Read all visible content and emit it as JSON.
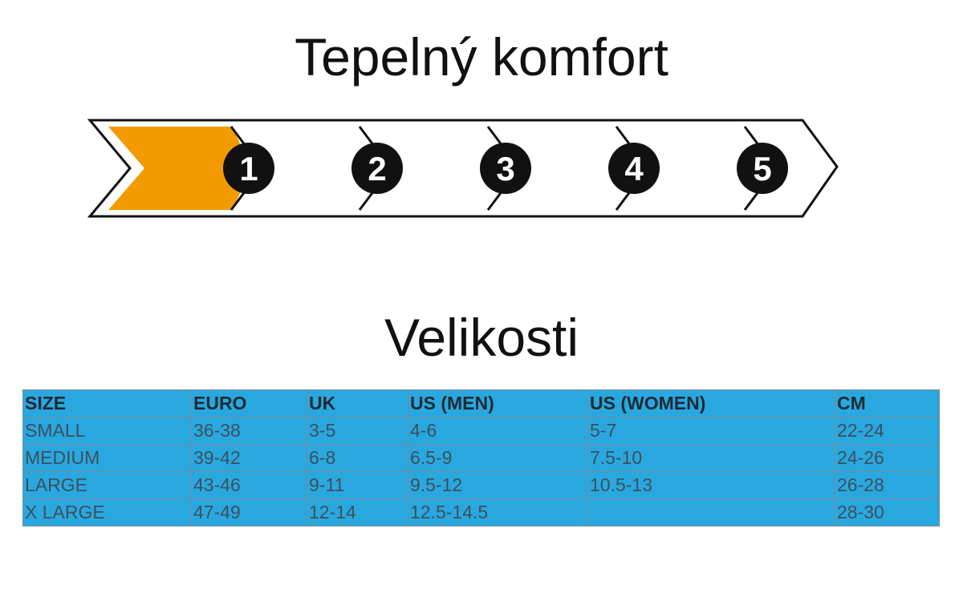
{
  "comfort": {
    "title": "Tepelný komfort",
    "levels": [
      1,
      2,
      3,
      4,
      5
    ]
  },
  "sizes": {
    "title": "Velikosti",
    "table": {
      "header": [
        "SIZE",
        "EURO",
        "UK",
        "US (MEN)",
        "US (WOMEN)",
        "CM"
      ],
      "rows": [
        [
          "SMALL",
          "36-38",
          "3-5",
          "4-6",
          "5-7",
          "22-24"
        ],
        [
          "MEDIUM",
          "39-42",
          "6-8",
          "6.5-9",
          "7.5-10",
          "24-26"
        ],
        [
          "LARGE",
          "43-46",
          "9-11",
          "9.5-12",
          "10.5-13",
          "26-28"
        ],
        [
          "X LARGE",
          "47-49",
          "12-14",
          "12.5-14.5",
          null,
          "28-30"
        ]
      ]
    }
  }
}
